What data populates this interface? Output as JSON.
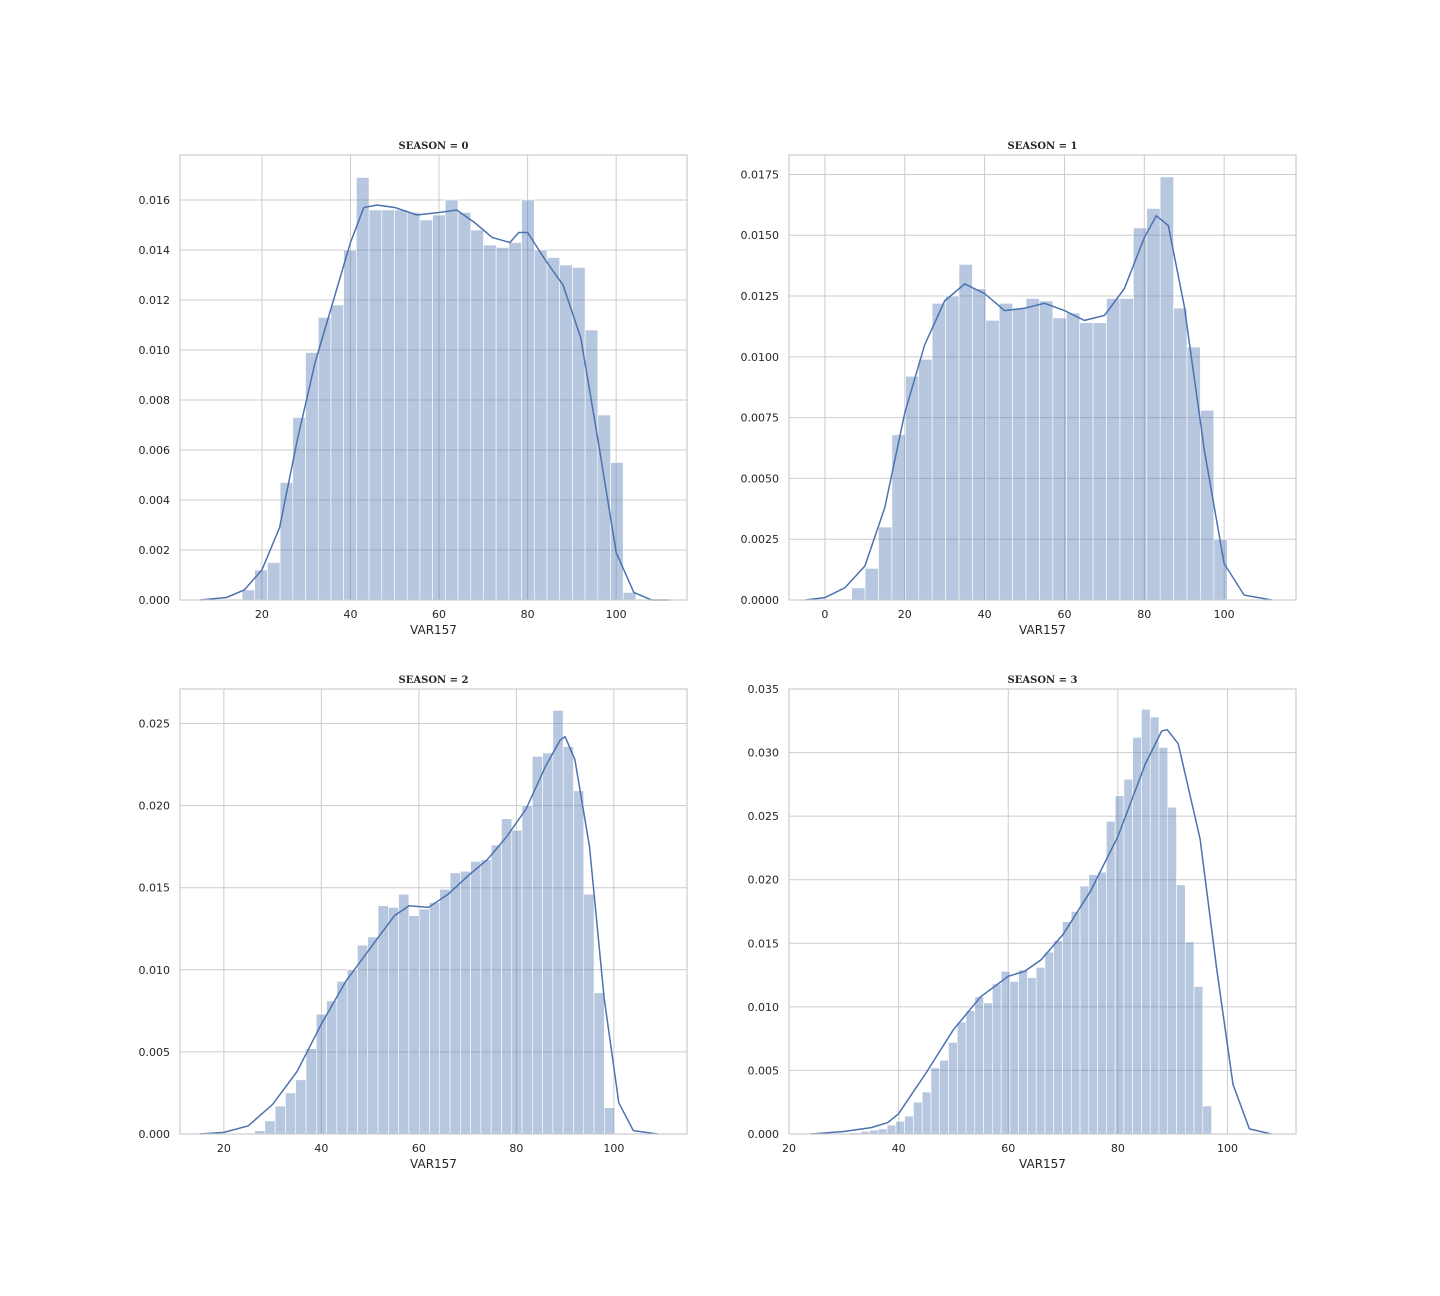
{
  "chart_data": [
    {
      "type": "histogram",
      "title": "SEASON = 0",
      "xlabel": "VAR157",
      "ylabel": "",
      "xlim": [
        1.5,
        116
      ],
      "ylim": [
        0,
        0.0178
      ],
      "xticks": [
        "20",
        "40",
        "60",
        "80",
        "100"
      ],
      "xtick_values": [
        20,
        40,
        60,
        80,
        100
      ],
      "yticks": [
        "0.000",
        "0.002",
        "0.004",
        "0.006",
        "0.008",
        "0.010",
        "0.012",
        "0.014",
        "0.016"
      ],
      "ytick_values": [
        0,
        0.002,
        0.004,
        0.006,
        0.008,
        0.01,
        0.012,
        0.014,
        0.016
      ],
      "bin_start": 15.5,
      "bin_width": 2.87,
      "values": [
        0.0004,
        0.0012,
        0.0015,
        0.0047,
        0.0073,
        0.0099,
        0.0113,
        0.0118,
        0.014,
        0.0169,
        0.0156,
        0.0156,
        0.0156,
        0.0155,
        0.0152,
        0.0154,
        0.016,
        0.0155,
        0.0148,
        0.0142,
        0.0141,
        0.0143,
        0.016,
        0.014,
        0.0137,
        0.0134,
        0.0133,
        0.0108,
        0.0074,
        0.0055,
        0.0003
      ],
      "kde_x": [
        6,
        12,
        16,
        20,
        24,
        28,
        32,
        36,
        40,
        43,
        46,
        50,
        55,
        60,
        64,
        68,
        72,
        76,
        78,
        80,
        84,
        88,
        92,
        96,
        100,
        104,
        108,
        112
      ],
      "kde_y": [
        0,
        0.0001,
        0.0004,
        0.0012,
        0.0029,
        0.0064,
        0.0095,
        0.0119,
        0.0143,
        0.0157,
        0.0158,
        0.0157,
        0.0154,
        0.0155,
        0.0156,
        0.0151,
        0.0145,
        0.0143,
        0.0147,
        0.0147,
        0.0136,
        0.0126,
        0.0105,
        0.0063,
        0.0019,
        0.0003,
        0,
        0
      ]
    },
    {
      "type": "histogram",
      "title": "SEASON = 1",
      "xlabel": "VAR157",
      "ylabel": "",
      "xlim": [
        -9,
        118
      ],
      "ylim": [
        0,
        0.0183
      ],
      "xticks": [
        "0",
        "20",
        "40",
        "60",
        "80",
        "100"
      ],
      "xtick_values": [
        0,
        20,
        40,
        60,
        80,
        100
      ],
      "yticks": [
        "0.0000",
        "0.0025",
        "0.0050",
        "0.0075",
        "0.0100",
        "0.0125",
        "0.0150",
        "0.0175"
      ],
      "ytick_values": [
        0,
        0.0025,
        0.005,
        0.0075,
        0.01,
        0.0125,
        0.015,
        0.0175
      ],
      "bin_start": 6.7,
      "bin_width": 3.36,
      "values": [
        0.0005,
        0.0013,
        0.003,
        0.0068,
        0.0092,
        0.0099,
        0.0122,
        0.0125,
        0.0138,
        0.0128,
        0.0115,
        0.0122,
        0.012,
        0.0124,
        0.0123,
        0.0116,
        0.0118,
        0.0114,
        0.0114,
        0.0124,
        0.0124,
        0.0153,
        0.0161,
        0.0174,
        0.012,
        0.0104,
        0.0078,
        0.0025
      ],
      "kde_x": [
        -5,
        0,
        5,
        10,
        15,
        20,
        25,
        30,
        35,
        40,
        45,
        50,
        55,
        60,
        65,
        70,
        75,
        80,
        83,
        86,
        90,
        95,
        100,
        105,
        112
      ],
      "kde_y": [
        0,
        0.0001,
        0.0005,
        0.0014,
        0.0038,
        0.0077,
        0.0105,
        0.0123,
        0.013,
        0.0126,
        0.0119,
        0.012,
        0.0122,
        0.0119,
        0.0115,
        0.0117,
        0.0128,
        0.0149,
        0.0158,
        0.0154,
        0.0121,
        0.0062,
        0.0015,
        0.0002,
        0
      ]
    },
    {
      "type": "histogram",
      "title": "SEASON = 2",
      "xlabel": "VAR157",
      "ylabel": "",
      "xlim": [
        11,
        115
      ],
      "ylim": [
        0,
        0.0271
      ],
      "xticks": [
        "20",
        "40",
        "60",
        "80",
        "100"
      ],
      "xtick_values": [
        20,
        40,
        60,
        80,
        100
      ],
      "yticks": [
        "0.000",
        "0.005",
        "0.010",
        "0.015",
        "0.020",
        "0.025"
      ],
      "ytick_values": [
        0,
        0.005,
        0.01,
        0.015,
        0.02,
        0.025
      ],
      "bin_start": 26.3,
      "bin_width": 2.11,
      "values": [
        0.0002,
        0.0008,
        0.0017,
        0.0025,
        0.0033,
        0.0052,
        0.0073,
        0.0081,
        0.0093,
        0.01,
        0.0115,
        0.012,
        0.0139,
        0.0138,
        0.0146,
        0.0133,
        0.0137,
        0.0141,
        0.0149,
        0.0159,
        0.016,
        0.0166,
        0.0167,
        0.0176,
        0.0192,
        0.0185,
        0.02,
        0.023,
        0.0232,
        0.0258,
        0.0236,
        0.0209,
        0.0146,
        0.0086,
        0.0016
      ],
      "kde_x": [
        15,
        20,
        25,
        30,
        35,
        40,
        45,
        50,
        55,
        58,
        62,
        66,
        70,
        74,
        78,
        82,
        86,
        89,
        90,
        92,
        95,
        98,
        101,
        104,
        109
      ],
      "kde_y": [
        0,
        0.0001,
        0.0005,
        0.0018,
        0.0038,
        0.0067,
        0.0093,
        0.0113,
        0.0133,
        0.0139,
        0.0138,
        0.0146,
        0.0157,
        0.0167,
        0.0181,
        0.0198,
        0.0224,
        0.024,
        0.0242,
        0.0228,
        0.0175,
        0.0083,
        0.0019,
        0.0002,
        0
      ]
    },
    {
      "type": "histogram",
      "title": "SEASON = 3",
      "xlabel": "VAR157",
      "ylabel": "",
      "xlim": [
        20,
        112.5
      ],
      "ylim": [
        0,
        0.035
      ],
      "xticks": [
        "20",
        "40",
        "60",
        "80",
        "100"
      ],
      "xtick_values": [
        20,
        40,
        60,
        80,
        100
      ],
      "yticks": [
        "0.000",
        "0.005",
        "0.010",
        "0.015",
        "0.020",
        "0.025",
        "0.030",
        "0.035"
      ],
      "ytick_values": [
        0,
        0.005,
        0.01,
        0.015,
        0.02,
        0.025,
        0.03,
        0.035
      ],
      "bin_start": 31.5,
      "bin_width": 1.6,
      "values": [
        0.0001,
        0.0002,
        0.0003,
        0.0004,
        0.0007,
        0.001,
        0.0014,
        0.0025,
        0.0033,
        0.0052,
        0.0058,
        0.0072,
        0.0088,
        0.0097,
        0.0108,
        0.0103,
        0.0118,
        0.0128,
        0.012,
        0.0129,
        0.0123,
        0.0131,
        0.0143,
        0.0152,
        0.0167,
        0.0175,
        0.0195,
        0.0204,
        0.0206,
        0.0246,
        0.0266,
        0.0279,
        0.0312,
        0.0334,
        0.0328,
        0.0304,
        0.0257,
        0.0196,
        0.0151,
        0.0116,
        0.0022
      ],
      "kde_x": [
        24,
        30,
        35,
        38,
        40,
        45,
        50,
        55,
        60,
        63,
        66,
        70,
        75,
        80,
        85,
        88,
        89,
        91,
        95,
        98,
        101,
        104,
        108
      ],
      "kde_y": [
        0,
        0.0002,
        0.0005,
        0.0009,
        0.0016,
        0.0048,
        0.0082,
        0.0108,
        0.0124,
        0.0128,
        0.0137,
        0.0157,
        0.0191,
        0.0234,
        0.0291,
        0.0317,
        0.0318,
        0.0307,
        0.0232,
        0.0131,
        0.0039,
        0.0004,
        0
      ]
    }
  ]
}
